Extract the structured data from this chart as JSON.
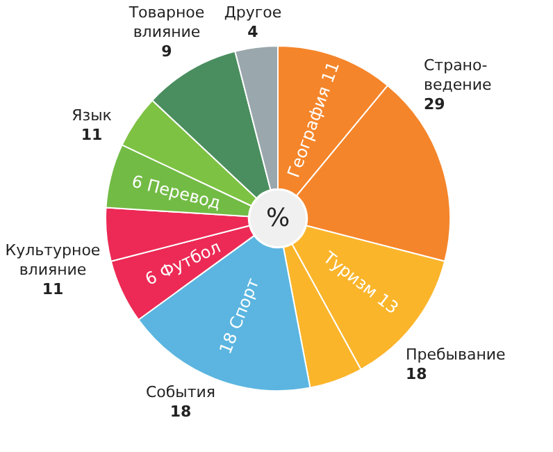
{
  "chart_data": {
    "type": "donut",
    "categories": [
      null,
      null,
      null,
      null,
      null,
      null,
      null,
      null,
      null,
      null,
      null
    ],
    "values": [
      11,
      18,
      13,
      5,
      18,
      6,
      5,
      6,
      5,
      9,
      4
    ],
    "colors": [
      "#f5852a",
      "#f5852a",
      "#fbb52b",
      "#fbb52b",
      "#5bb5e0",
      "#ec2a55",
      "#ec2a55",
      "#72bb45",
      "#7dc242",
      "#4a8e5f",
      "#9aa7ad"
    ],
    "value_labels": [
      "География 11",
      null,
      "Туризм 13",
      null,
      "18 Спорт",
      "6 Футбол",
      null,
      "6 Перевод",
      null,
      null,
      null
    ],
    "annotations": [
      "%",
      "Страно-\nведение\n29",
      "Пребывание\n18",
      "События\n18",
      "Культурное\nвлияние\n11",
      "Язык\n11",
      "Товарное\nвлияние\n9",
      "Другое\n4"
    ]
  }
}
